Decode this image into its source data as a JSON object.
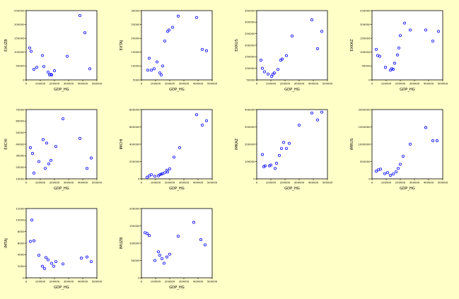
{
  "colors": {
    "background": "#FFFFC8",
    "panel": "#ffffff",
    "marker": "#2020ff"
  },
  "chart_data": [
    {
      "type": "scatter",
      "xlabel": "GDP_HG",
      "ylabel": "EXUZB",
      "xlim": [
        0,
        500000
      ],
      "ylim": [
        0,
        250000
      ],
      "xticks": [
        "0",
        "100000",
        "200000",
        "300000",
        "400000",
        "500000"
      ],
      "yticks": [
        "0",
        "50000",
        "100000",
        "150000",
        "200000",
        "250000"
      ],
      "x": [
        25000,
        35000,
        55000,
        75000,
        115000,
        125000,
        155000,
        165000,
        175000,
        180000,
        200000,
        290000,
        380000,
        415000,
        450000
      ],
      "y": [
        115000,
        103000,
        38000,
        45000,
        88000,
        48000,
        28000,
        18000,
        20000,
        18000,
        33000,
        85000,
        232000,
        170000,
        40000
      ]
    },
    {
      "type": "scatter",
      "xlabel": "GDP_HG",
      "ylabel": "EXTAJ",
      "xlim": [
        0,
        500000
      ],
      "ylim": [
        5000,
        30000
      ],
      "xticks": [
        "0",
        "100000",
        "200000",
        "300000",
        "400000",
        "500000"
      ],
      "yticks": [
        "5000",
        "10000",
        "15000",
        "20000",
        "25000",
        "30000"
      ],
      "x": [
        45000,
        55000,
        70000,
        90000,
        110000,
        130000,
        140000,
        150000,
        165000,
        185000,
        195000,
        220000,
        260000,
        390000,
        430000,
        460000
      ],
      "y": [
        8500,
        12800,
        8500,
        9000,
        11500,
        7500,
        6800,
        10000,
        19000,
        22500,
        23000,
        24000,
        28000,
        27500,
        16000,
        15500
      ]
    },
    {
      "type": "scatter",
      "xlabel": "GDP_HG",
      "ylabel": "EXRUS",
      "xlim": [
        0,
        500000
      ],
      "ylim": [
        50000,
        350000
      ],
      "xticks": [
        "0",
        "100000",
        "200000",
        "300000",
        "400000",
        "500000"
      ],
      "yticks": [
        "50000",
        "100000",
        "150000",
        "200000",
        "250000",
        "300000",
        "350000"
      ],
      "x": [
        30000,
        40000,
        55000,
        80000,
        105000,
        115000,
        125000,
        150000,
        170000,
        180000,
        210000,
        250000,
        390000,
        430000,
        460000
      ],
      "y": [
        135000,
        100000,
        85000,
        75000,
        65000,
        75000,
        80000,
        95000,
        135000,
        140000,
        155000,
        240000,
        310000,
        185000,
        260000
      ]
    },
    {
      "type": "scatter",
      "xlabel": "GDP_HG",
      "ylabel": "EXKAZ",
      "xlim": [
        0,
        500000
      ],
      "ylim": [
        0,
        250000
      ],
      "xticks": [
        "0",
        "100000",
        "200000",
        "300000",
        "400000",
        "500000"
      ],
      "yticks": [
        "0",
        "50000",
        "100000",
        "150000",
        "200000",
        "250000"
      ],
      "x": [
        30000,
        40000,
        55000,
        95000,
        130000,
        140000,
        150000,
        160000,
        180000,
        190000,
        200000,
        230000,
        270000,
        380000,
        430000,
        470000
      ],
      "y": [
        110000,
        88000,
        85000,
        45000,
        35000,
        40000,
        38000,
        60000,
        90000,
        115000,
        160000,
        205000,
        180000,
        180000,
        140000,
        175000
      ]
    },
    {
      "type": "scatter",
      "xlabel": "GDP_HG",
      "ylabel": "EXCHI",
      "xlim": [
        0,
        500000
      ],
      "ylim": [
        10000,
        70000
      ],
      "xticks": [
        "0",
        "100000",
        "200000",
        "300000",
        "400000",
        "500000"
      ],
      "yticks": [
        "10000",
        "20000",
        "30000",
        "40000",
        "50000",
        "60000",
        "70000"
      ],
      "x": [
        30000,
        45000,
        55000,
        90000,
        120000,
        135000,
        145000,
        160000,
        175000,
        210000,
        260000,
        380000,
        430000,
        460000
      ],
      "y": [
        37000,
        32000,
        15000,
        25000,
        44000,
        19000,
        41000,
        23000,
        26000,
        38000,
        62000,
        45000,
        19000,
        28000
      ]
    },
    {
      "type": "scatter",
      "xlabel": "GDP_HG",
      "ylabel": "IMCHI",
      "xlim": [
        0,
        500000
      ],
      "ylim": [
        0,
        800000
      ],
      "xticks": [
        "0",
        "100000",
        "200000",
        "300000",
        "400000",
        "500000"
      ],
      "yticks": [
        "0",
        "200000",
        "400000",
        "600000",
        "800000"
      ],
      "x": [
        40000,
        55000,
        70000,
        95000,
        120000,
        130000,
        140000,
        150000,
        165000,
        180000,
        185000,
        200000,
        230000,
        270000,
        390000,
        430000,
        460000
      ],
      "y": [
        18000,
        35000,
        48000,
        30000,
        35000,
        48000,
        55000,
        60000,
        70000,
        100000,
        80000,
        115000,
        250000,
        360000,
        740000,
        620000,
        670000
      ]
    },
    {
      "type": "scatter",
      "xlabel": "GDP_HG",
      "ylabel": "IMKAZ",
      "xlim": [
        0,
        500000
      ],
      "ylim": [
        0,
        400000
      ],
      "xticks": [
        "0",
        "100000",
        "200000",
        "300000",
        "400000",
        "500000"
      ],
      "yticks": [
        "0",
        "100000",
        "200000",
        "300000",
        "400000"
      ],
      "x": [
        40000,
        50000,
        60000,
        90000,
        100000,
        130000,
        140000,
        160000,
        175000,
        190000,
        210000,
        230000,
        300000,
        390000,
        430000,
        460000
      ],
      "y": [
        140000,
        70000,
        75000,
        75000,
        80000,
        60000,
        90000,
        135000,
        175000,
        210000,
        175000,
        205000,
        310000,
        380000,
        340000,
        385000
      ]
    },
    {
      "type": "scatter",
      "xlabel": "GDP_HG",
      "ylabel": "IMRUS",
      "xlim": [
        0,
        500000
      ],
      "ylim": [
        0,
        2000000
      ],
      "xticks": [
        "0",
        "100000",
        "200000",
        "300000",
        "400000",
        "500000"
      ],
      "yticks": [
        "0",
        "500000",
        "1000000",
        "1500000",
        "2000000"
      ],
      "x": [
        30000,
        45000,
        60000,
        90000,
        110000,
        130000,
        150000,
        170000,
        185000,
        200000,
        220000,
        270000,
        380000,
        430000,
        460000
      ],
      "y": [
        220000,
        260000,
        280000,
        150000,
        180000,
        100000,
        140000,
        200000,
        300000,
        420000,
        650000,
        1000000,
        1480000,
        1100000,
        1100000
      ]
    },
    {
      "type": "scatter",
      "xlabel": "GDP_HG",
      "ylabel": "IMTAJ",
      "xlim": [
        0,
        500000
      ],
      "ylim": [
        0,
        12000
      ],
      "xticks": [
        "0",
        "100000",
        "200000",
        "300000",
        "400000",
        "500000"
      ],
      "yticks": [
        "0",
        "2000",
        "4000",
        "6000",
        "8000",
        "10000",
        "12000"
      ],
      "x": [
        30000,
        40000,
        55000,
        90000,
        115000,
        130000,
        140000,
        155000,
        180000,
        195000,
        210000,
        260000,
        390000,
        430000,
        460000
      ],
      "y": [
        6300,
        10000,
        6400,
        3900,
        2000,
        1600,
        3500,
        3100,
        2500,
        2000,
        2800,
        2400,
        3400,
        3600,
        2800
      ]
    },
    {
      "type": "scatter",
      "xlabel": "GDP_HG",
      "ylabel": "IMUZB",
      "xlim": [
        0,
        500000
      ],
      "ylim": [
        0,
        200000
      ],
      "xticks": [
        "0",
        "100000",
        "200000",
        "300000",
        "400000",
        "500000"
      ],
      "yticks": [
        "0",
        "50000",
        "100000",
        "150000",
        "200000"
      ],
      "x": [
        25000,
        40000,
        55000,
        95000,
        120000,
        130000,
        145000,
        160000,
        180000,
        200000,
        260000,
        370000,
        420000,
        450000
      ],
      "y": [
        130000,
        128000,
        122000,
        50000,
        75000,
        65000,
        55000,
        42000,
        60000,
        68000,
        120000,
        160000,
        110000,
        95000
      ]
    }
  ]
}
